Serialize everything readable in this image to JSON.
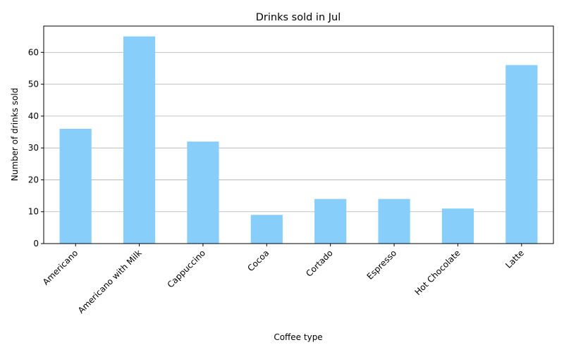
{
  "chart_data": {
    "type": "bar",
    "title": "Drinks sold in Jul",
    "xlabel": "Coffee type",
    "ylabel": "Number of drinks sold",
    "categories": [
      "Americano",
      "Americano with Milk",
      "Cappuccino",
      "Cocoa",
      "Cortado",
      "Espresso",
      "Hot Chocolate",
      "Latte"
    ],
    "values": [
      36,
      65,
      32,
      9,
      14,
      14,
      11,
      56
    ],
    "ylim": [
      0,
      68.25
    ],
    "yticks": [
      0,
      10,
      20,
      30,
      40,
      50,
      60
    ],
    "grid": "y-axis only",
    "legend": "none",
    "bar_color": "#87CEFA",
    "grid_color": "#b0b0b0",
    "axis_color": "#000000"
  }
}
